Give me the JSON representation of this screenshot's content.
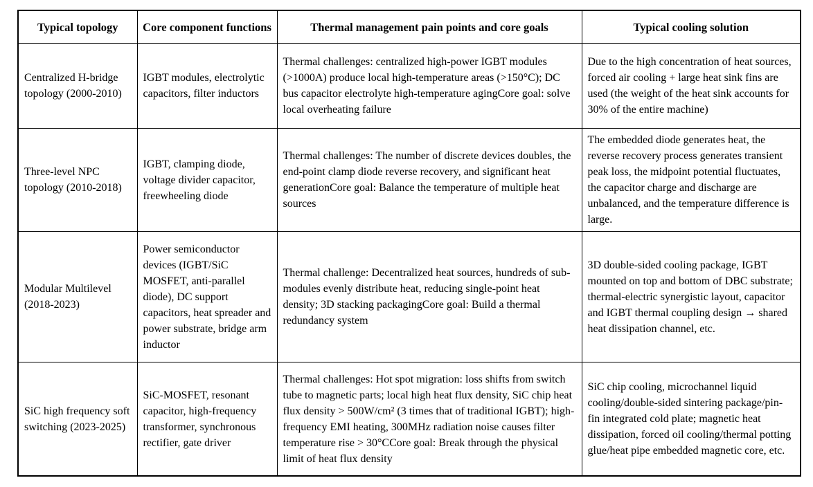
{
  "table": {
    "columns": [
      {
        "label": "Typical topology"
      },
      {
        "label": "Core component functions"
      },
      {
        "label": "Thermal management pain points and core goals"
      },
      {
        "label": "Typical cooling solution"
      }
    ],
    "rows": [
      {
        "topology": "Centralized H-bridge topology (2000-2010)",
        "components": "IGBT modules, electrolytic capacitors, filter inductors",
        "pain_points": "Thermal challenges: centralized high-power IGBT modules (>1000A) produce local high-temperature areas (>150°C); DC bus capacitor electrolyte high-temperature agingCore goal: solve local overheating failure",
        "cooling": "Due to the high concentration of heat sources, forced air cooling + large heat sink fins are used (the weight of the heat sink accounts for 30% of the entire machine)"
      },
      {
        "topology": "Three-level NPC topology (2010-2018)",
        "components": "IGBT, clamping diode, voltage divider capacitor, freewheeling diode",
        "pain_points": "Thermal challenges: The number of discrete devices doubles, the end-point clamp diode reverse recovery, and significant heat generationCore goal: Balance the temperature of multiple heat sources",
        "cooling": "The embedded diode generates heat, the reverse recovery process generates transient peak loss, the midpoint potential fluctuates, the capacitor charge and discharge are unbalanced, and the temperature difference is large."
      },
      {
        "topology": "Modular Multilevel (2018-2023)",
        "components": "Power semiconductor devices (IGBT/SiC MOSFET, anti-parallel diode), DC support capacitors, heat spreader and power substrate, bridge arm inductor",
        "pain_points": "Thermal challenge: Decentralized heat sources, hundreds of sub-modules evenly distribute heat, reducing single-point heat density; 3D stacking packagingCore goal: Build a thermal redundancy system",
        "cooling": "3D double-sided cooling package, IGBT mounted on top and bottom of DBC substrate; thermal-electric synergistic layout, capacitor and IGBT thermal coupling design → shared heat dissipation channel, etc."
      },
      {
        "topology": "SiC high frequency soft switching (2023-2025)",
        "components": "SiC-MOSFET, resonant capacitor, high-frequency transformer, synchronous rectifier, gate driver",
        "pain_points": "Thermal challenges: Hot spot migration: loss shifts from switch tube to magnetic parts; local high heat flux density, SiC chip heat flux density > 500W/cm² (3 times that of traditional IGBT); high-frequency EMI heating, 300MHz radiation noise causes filter temperature rise > 30°CCore goal: Break through the physical limit of heat flux density",
        "cooling": "SiC chip cooling, microchannel liquid cooling/double-sided sintering package/pin-fin integrated cold plate; magnetic heat dissipation, forced oil cooling/thermal potting glue/heat pipe embedded magnetic core, etc."
      }
    ]
  }
}
